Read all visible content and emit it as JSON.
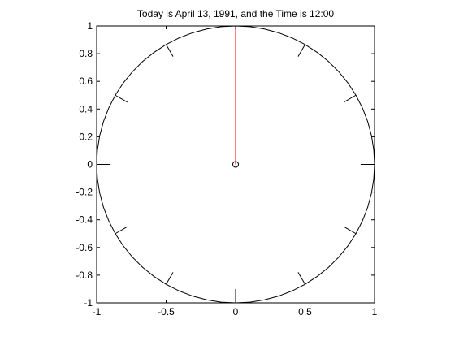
{
  "chart_data": {
    "type": "line",
    "title": "Today is April 13, 1991, and the Time is 12:00",
    "xlabel": "",
    "ylabel": "",
    "xlim": [
      -1,
      1
    ],
    "ylim": [
      -1,
      1
    ],
    "x_ticks": [
      -1,
      -0.5,
      0,
      0.5,
      1
    ],
    "x_tick_labels": [
      "-1",
      "-0.5",
      "0",
      "0.5",
      "1"
    ],
    "y_ticks": [
      -1,
      -0.8,
      -0.6,
      -0.4,
      -0.2,
      0,
      0.2,
      0.4,
      0.6,
      0.8,
      1
    ],
    "y_tick_labels": [
      "-1",
      "-0.8",
      "-0.6",
      "-0.4",
      "-0.2",
      "0",
      "0.2",
      "0.4",
      "0.6",
      "0.8",
      "1"
    ],
    "grid": false,
    "dial": {
      "radius": 1,
      "hour_marks": 12,
      "mark_inner_radius": 0.9,
      "mark_outer_radius": 1
    },
    "hand": {
      "from": [
        0,
        0
      ],
      "to": [
        0,
        1
      ]
    },
    "center_marker": [
      0,
      0
    ],
    "colors": {
      "dial": "#000000",
      "hand": "#ff0000",
      "axes": "#000000"
    }
  }
}
